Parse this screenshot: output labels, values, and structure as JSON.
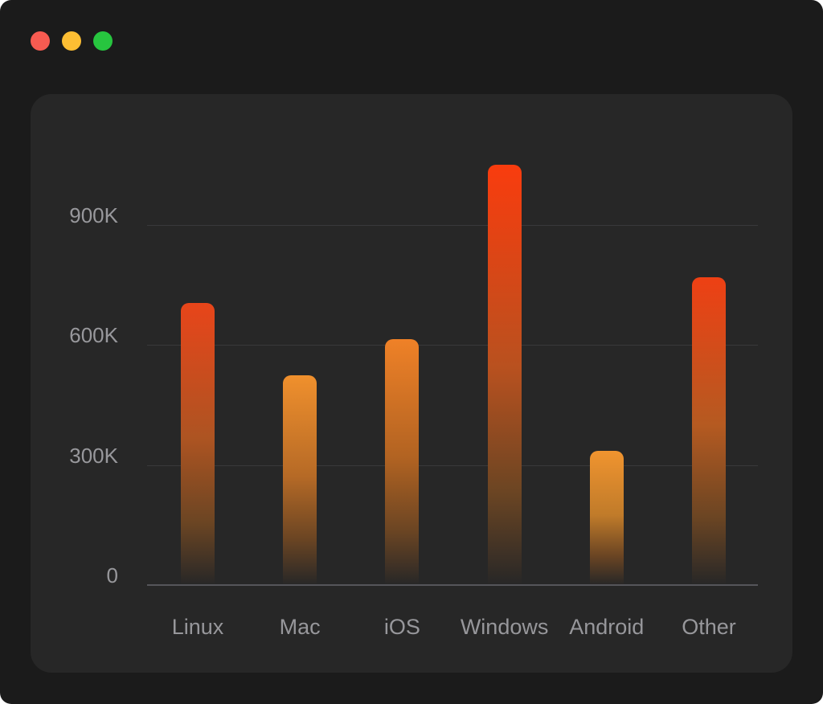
{
  "window": {
    "traffic_lights": [
      {
        "name": "close",
        "color": "#f75b51"
      },
      {
        "name": "minimize",
        "color": "#fdbe33"
      },
      {
        "name": "zoom",
        "color": "#27c53f"
      }
    ],
    "background_color": "#1b1b1b",
    "panel_color": "#272727"
  },
  "chart_data": {
    "type": "bar",
    "title": "",
    "xlabel": "",
    "ylabel": "",
    "categories": [
      "Linux",
      "Mac",
      "iOS",
      "Windows",
      "Android",
      "Other"
    ],
    "values": [
      705000,
      525000,
      615000,
      1050000,
      335000,
      770000
    ],
    "yticks": [
      {
        "label": "0",
        "value": 0
      },
      {
        "label": "300K",
        "value": 300000
      },
      {
        "label": "600K",
        "value": 600000
      },
      {
        "label": "900K",
        "value": 900000
      }
    ],
    "ylim": [
      0,
      1100000
    ],
    "grid": true,
    "legend": false,
    "bar_gradients": [
      {
        "top": "#e8451a",
        "mid": "#ad5422"
      },
      {
        "top": "#f0902d",
        "mid": "#b66a26"
      },
      {
        "top": "#ef8127",
        "mid": "#b26322"
      },
      {
        "top": "#f93c0e",
        "mid": "#b9511f"
      },
      {
        "top": "#f0942f",
        "mid": "#c07b2a"
      },
      {
        "top": "#ee4014",
        "mid": "#b55a21"
      }
    ],
    "gradient_low": "#6b4523",
    "gradient_fade": "rgba(58,42,30,0)",
    "gridline_color": "#39393b",
    "axis_line_color": "#55555a",
    "tick_label_color": "#98989c"
  }
}
